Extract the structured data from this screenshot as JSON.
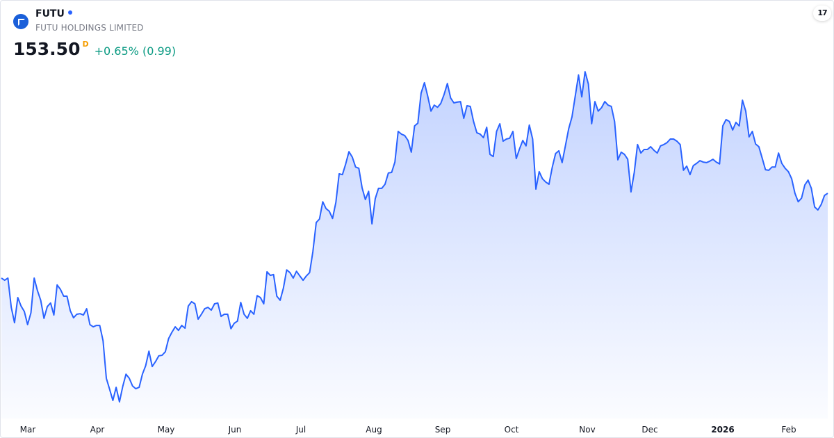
{
  "header": {
    "symbol": "FUTU",
    "company": "FUTU HOLDINGS LIMITED",
    "price": "153.50",
    "interval_badge": "D",
    "change": "+0.65% (0.99)",
    "brand_badge": "TV"
  },
  "colors": {
    "line": "#2962ff",
    "change_positive": "#089981",
    "badge": "#f59d00"
  },
  "chart_data": {
    "type": "area",
    "title": "",
    "xlabel": "",
    "ylabel": "",
    "grid": false,
    "ylim": [
      71.7,
      224.1
    ],
    "x_ticks": [
      "Mar",
      "Apr",
      "May",
      "Jun",
      "Jul",
      "Aug",
      "Sep",
      "Oct",
      "Nov",
      "Dec",
      "2026",
      "Feb"
    ],
    "values": [
      122.5,
      121.7,
      122.5,
      111.8,
      106.2,
      115.4,
      112.3,
      110.3,
      105.5,
      109.8,
      122.5,
      117.9,
      114.4,
      107.8,
      112.1,
      113.4,
      109.0,
      120.0,
      118.4,
      115.9,
      115.9,
      110.6,
      108.0,
      109.3,
      109.5,
      109.0,
      111.3,
      105.5,
      104.7,
      105.2,
      105.2,
      99.6,
      85.9,
      81.9,
      77.8,
      82.6,
      77.3,
      82.9,
      87.4,
      85.9,
      83.1,
      82.1,
      82.6,
      87.4,
      90.5,
      95.8,
      90.2,
      92.0,
      94.1,
      94.3,
      95.6,
      100.4,
      102.7,
      104.7,
      103.4,
      105.2,
      104.2,
      112.3,
      113.9,
      113.1,
      107.5,
      109.3,
      111.3,
      111.8,
      110.8,
      113.1,
      113.4,
      108.5,
      109.3,
      109.3,
      104.0,
      106.0,
      106.8,
      113.6,
      109.3,
      107.8,
      110.6,
      109.3,
      116.1,
      115.4,
      113.1,
      124.8,
      123.5,
      123.8,
      115.9,
      114.4,
      118.9,
      125.5,
      124.5,
      122.5,
      125.0,
      123.3,
      121.7,
      123.3,
      124.5,
      132.2,
      142.8,
      144.1,
      150.4,
      147.9,
      146.9,
      144.3,
      150.2,
      160.6,
      160.3,
      164.2,
      168.7,
      166.7,
      163.1,
      162.6,
      155.5,
      151.2,
      154.2,
      142.3,
      151.5,
      155.3,
      155.3,
      156.8,
      160.9,
      161.1,
      164.9,
      176.1,
      175.1,
      174.6,
      172.8,
      168.5,
      178.1,
      179.1,
      190.1,
      193.9,
      189.0,
      183.5,
      185.7,
      184.9,
      186.3,
      189.6,
      193.6,
      188.3,
      186.5,
      186.8,
      187.0,
      180.9,
      185.5,
      185.2,
      179.7,
      175.6,
      175.1,
      173.8,
      177.6,
      167.7,
      166.9,
      176.1,
      178.9,
      172.5,
      173.3,
      173.6,
      176.1,
      166.2,
      169.7,
      172.8,
      170.8,
      178.4,
      173.3,
      155.0,
      161.4,
      158.8,
      157.6,
      156.8,
      163.1,
      168.0,
      169.0,
      164.7,
      170.8,
      177.1,
      181.4,
      189.0,
      196.7,
      188.7,
      197.9,
      193.4,
      178.9,
      187.0,
      183.5,
      184.7,
      187.0,
      185.7,
      185.2,
      179.7,
      165.7,
      168.5,
      167.7,
      165.9,
      154.0,
      161.1,
      171.3,
      168.2,
      169.5,
      169.5,
      170.5,
      169.2,
      168.2,
      170.8,
      171.3,
      172.0,
      173.3,
      173.3,
      172.5,
      171.3,
      161.9,
      163.4,
      160.3,
      163.6,
      164.4,
      165.4,
      164.9,
      164.7,
      165.2,
      165.9,
      164.9,
      164.2,
      178.1,
      180.4,
      179.7,
      176.6,
      179.4,
      178.1,
      187.5,
      183.5,
      174.1,
      176.1,
      171.5,
      170.5,
      166.4,
      162.1,
      161.9,
      163.1,
      163.1,
      168.2,
      164.4,
      162.6,
      161.4,
      158.8,
      153.5,
      150.4,
      151.7,
      156.5,
      158.3,
      155.3,
      148.5,
      147.4,
      149.4,
      152.7,
      153.5
    ]
  }
}
